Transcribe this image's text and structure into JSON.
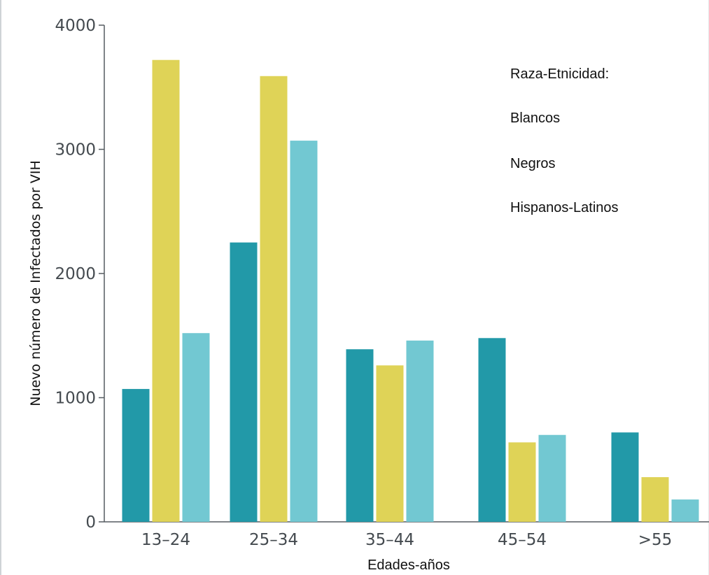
{
  "chart_data": {
    "type": "bar",
    "title": "",
    "xlabel": "Edades-años",
    "ylabel": "Nuevo número de Infectados por VIH",
    "categories": [
      "13–24",
      "25–34",
      "35–44",
      "45–54",
      ">55"
    ],
    "ylim": [
      0,
      4000
    ],
    "yticks": [
      "0",
      "1000",
      "2000",
      "3000",
      "4000"
    ],
    "legend_title": "Raza-Etnicidad:",
    "legend_position": "top-right",
    "grid": false,
    "series": [
      {
        "name": "Blancos",
        "color": "#2299a8",
        "values": [
          1070,
          2250,
          1390,
          1480,
          720
        ]
      },
      {
        "name": "Negros",
        "color": "#dfd357",
        "values": [
          3720,
          3590,
          1260,
          640,
          360
        ]
      },
      {
        "name": "Hispanos-Latinos",
        "color": "#72c8d2",
        "values": [
          1520,
          3070,
          1460,
          700,
          180
        ]
      }
    ]
  }
}
